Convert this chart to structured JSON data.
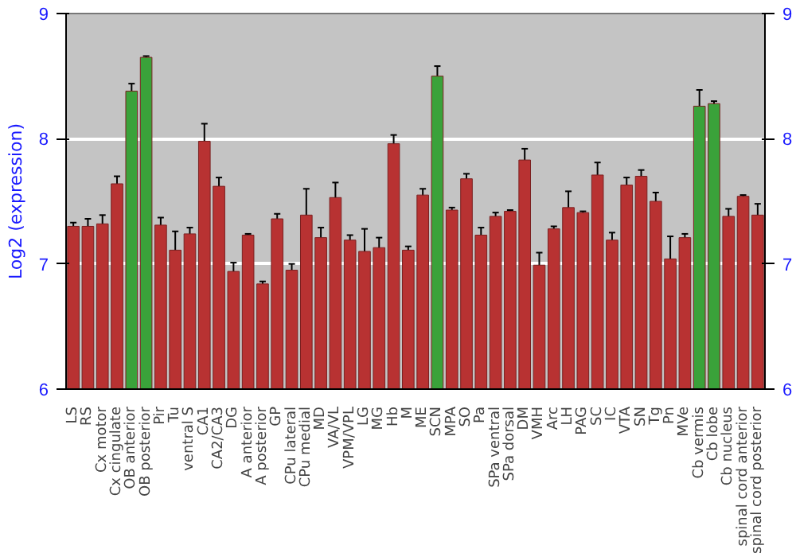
{
  "chart_data": {
    "type": "bar",
    "ylabel": "Log2 (expression)",
    "categories": [
      "LS",
      "RS",
      "Cx motor",
      "Cx cingulate",
      "OB anterior",
      "OB posterior",
      "Pir",
      "Tu",
      "ventral S",
      "CA1",
      "CA2/CA3",
      "DG",
      "A anterior",
      "A posterior",
      "GP",
      "CPu lateral",
      "CPu medial",
      "MD",
      "VA/VL",
      "VPM/VPL",
      "LG",
      "MG",
      "Hb",
      "M",
      "ME",
      "SCN",
      "MPA",
      "SO",
      "Pa",
      "SPa ventral",
      "SPa dorsal",
      "DM",
      "VMH",
      "Arc",
      "LH",
      "PAG",
      "SC",
      "IC",
      "VTA",
      "SN",
      "Tg",
      "Pn",
      "MVe",
      "Cb vermis",
      "Cb lobe",
      "Cb nucleus",
      "spinal cord anterior",
      "spinal cord posterior"
    ],
    "values": [
      7.3,
      7.3,
      7.32,
      7.64,
      8.38,
      8.65,
      7.31,
      7.11,
      7.24,
      7.98,
      7.62,
      6.94,
      7.23,
      6.84,
      7.36,
      6.95,
      7.39,
      7.21,
      7.53,
      7.19,
      7.1,
      7.13,
      7.96,
      7.11,
      7.55,
      8.5,
      7.43,
      7.68,
      7.23,
      7.38,
      7.42,
      7.83,
      6.99,
      7.28,
      7.45,
      7.41,
      7.71,
      7.19,
      7.63,
      7.7,
      7.5,
      7.04,
      7.21,
      8.26,
      8.28,
      7.38,
      7.54,
      7.39
    ],
    "errors": [
      0.03,
      0.06,
      0.07,
      0.06,
      0.06,
      0.01,
      0.06,
      0.15,
      0.05,
      0.14,
      0.07,
      0.07,
      0.01,
      0.02,
      0.04,
      0.05,
      0.21,
      0.08,
      0.12,
      0.04,
      0.18,
      0.08,
      0.07,
      0.03,
      0.05,
      0.08,
      0.02,
      0.04,
      0.06,
      0.03,
      0.01,
      0.09,
      0.1,
      0.02,
      0.13,
      0.01,
      0.1,
      0.06,
      0.06,
      0.05,
      0.07,
      0.18,
      0.03,
      0.13,
      0.02,
      0.06,
      0.01,
      0.09
    ],
    "colors": [
      "#b83232",
      "#b83232",
      "#b83232",
      "#b83232",
      "#3aa23a",
      "#3aa23a",
      "#b83232",
      "#b83232",
      "#b83232",
      "#b83232",
      "#b83232",
      "#b83232",
      "#b83232",
      "#b83232",
      "#b83232",
      "#b83232",
      "#b83232",
      "#b83232",
      "#b83232",
      "#b83232",
      "#b83232",
      "#b83232",
      "#b83232",
      "#b83232",
      "#b83232",
      "#3aa23a",
      "#b83232",
      "#b83232",
      "#b83232",
      "#b83232",
      "#b83232",
      "#b83232",
      "#b83232",
      "#b83232",
      "#b83232",
      "#b83232",
      "#b83232",
      "#b83232",
      "#b83232",
      "#b83232",
      "#b83232",
      "#b83232",
      "#b83232",
      "#3aa23a",
      "#3aa23a",
      "#b83232",
      "#b83232",
      "#b83232"
    ],
    "ylim": [
      6,
      9
    ],
    "yticks": [
      6,
      7,
      8,
      9
    ],
    "y2lim": [
      6,
      9
    ],
    "y2ticks": [
      6,
      7,
      8,
      9
    ],
    "grid": "y"
  }
}
